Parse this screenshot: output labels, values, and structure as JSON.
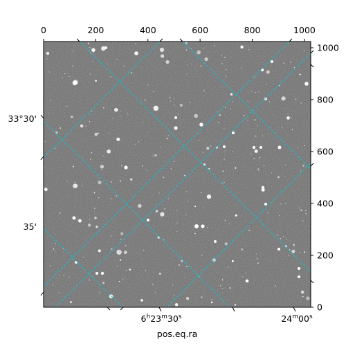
{
  "top_axis": {
    "ticks": [
      "0",
      "200",
      "400",
      "600",
      "800",
      "1000"
    ],
    "values": [
      0,
      200,
      400,
      600,
      800,
      1000
    ],
    "range": [
      0,
      1024
    ]
  },
  "right_axis": {
    "ticks": [
      "0",
      "200",
      "400",
      "600",
      "800",
      "1000"
    ],
    "values": [
      0,
      200,
      400,
      600,
      800,
      1000
    ],
    "range": [
      0,
      1024
    ]
  },
  "left_axis": {
    "ticks": [
      "33°30'",
      "35'"
    ]
  },
  "bottom_axis": {
    "ticks": [
      {
        "h": "6",
        "hs": "h",
        "m": "23",
        "ms": "m",
        "s": "30",
        "ss": "s"
      },
      {
        "h": "",
        "hs": "",
        "m": "24",
        "ms": "m",
        "s": "00",
        "ss": "s"
      }
    ],
    "title": "pos.eq.ra"
  },
  "image": {
    "type": "grayscale star field",
    "background": "#6e6e6e",
    "noise": true
  },
  "grid": {
    "color": "#17becf",
    "style": "dashed"
  }
}
